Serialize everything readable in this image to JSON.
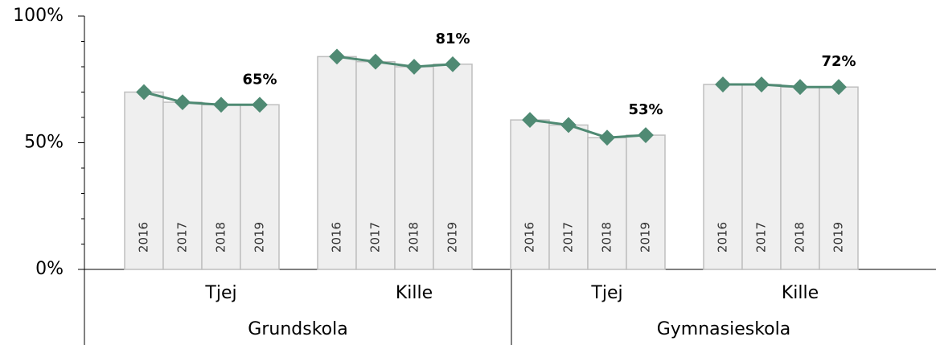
{
  "chart_data": {
    "type": "bar-line",
    "ylim": [
      0,
      100
    ],
    "yticks": [
      {
        "value": 0,
        "label": "0%"
      },
      {
        "value": 50,
        "label": "50%"
      },
      {
        "value": 100,
        "label": "100%"
      }
    ],
    "yminorticks": [
      10,
      20,
      30,
      40,
      60,
      70,
      80,
      90
    ],
    "bar_color": "#efefef",
    "bar_edge_color": "#bfbfbf",
    "line_color": "#4f8a73",
    "groups": [
      {
        "name": "Grundskola",
        "subgroups": [
          {
            "name": "Tjej",
            "categories": [
              "2016",
              "2017",
              "2018",
              "2019"
            ],
            "values": [
              70,
              66,
              65,
              65
            ],
            "value_labels": [
              null,
              null,
              null,
              "65%"
            ]
          },
          {
            "name": "Kille",
            "categories": [
              "2016",
              "2017",
              "2018",
              "2019"
            ],
            "values": [
              84,
              82,
              80,
              81
            ],
            "value_labels": [
              null,
              null,
              null,
              "81%"
            ]
          }
        ]
      },
      {
        "name": "Gymnasieskola",
        "subgroups": [
          {
            "name": "Tjej",
            "categories": [
              "2016",
              "2017",
              "2018",
              "2019"
            ],
            "values": [
              59,
              57,
              52,
              53
            ],
            "value_labels": [
              null,
              null,
              null,
              "53%"
            ]
          },
          {
            "name": "Kille",
            "categories": [
              "2016",
              "2017",
              "2018",
              "2019"
            ],
            "values": [
              73,
              73,
              72,
              72
            ],
            "value_labels": [
              null,
              null,
              null,
              "72%"
            ]
          }
        ]
      }
    ]
  }
}
